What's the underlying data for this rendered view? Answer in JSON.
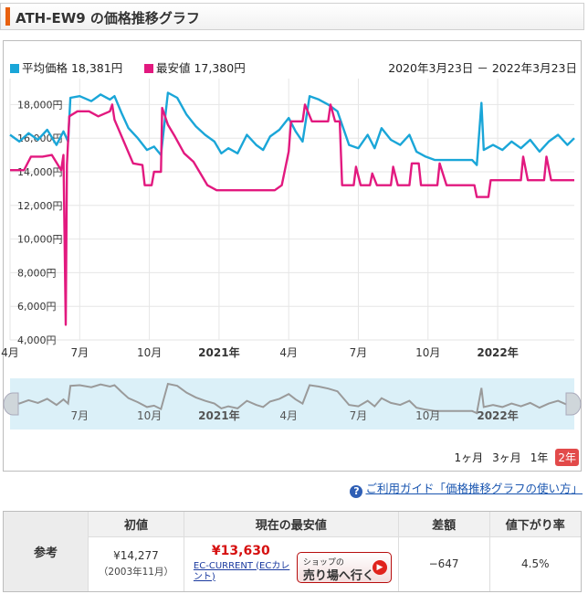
{
  "header": {
    "title": "ATH-EW9 の価格推移グラフ"
  },
  "legend": {
    "avg_label": "平均価格 18,381円",
    "min_label": "最安値 17,380円",
    "avg_color": "#1aa6d8",
    "min_color": "#e2197f",
    "date_range": "2020年3月23日 － 2022年3月23日"
  },
  "periods": [
    {
      "label": "1ヶ月",
      "active": false
    },
    {
      "label": "3ヶ月",
      "active": false
    },
    {
      "label": "1年",
      "active": false
    },
    {
      "label": "2年",
      "active": true
    }
  ],
  "guide": {
    "icon": "question-icon",
    "link": "ご利用ガイド「価格推移グラフの使い方」"
  },
  "reference": {
    "row_label": "参考",
    "headers": [
      "初値",
      "現在の最安値",
      "差額",
      "値下がり率"
    ],
    "initial_price": "¥14,277",
    "initial_date": "（2003年11月）",
    "current_lowest": "¥13,630",
    "shop_name": "EC-CURRENT (ECカレント)",
    "shop_button_small": "ショップの",
    "shop_button_large": "売り場へ行く",
    "difference": "−647",
    "drop_rate": "4.5%"
  },
  "chart_data": {
    "type": "line",
    "y_ticks": [
      "4,000円",
      "6,000円",
      "8,000円",
      "10,000円",
      "12,000円",
      "14,000円",
      "16,000円",
      "18,000円"
    ],
    "ylim": [
      4000,
      19000
    ],
    "x_ticks": [
      "4月",
      "7月",
      "10月",
      "2021年",
      "4月",
      "7月",
      "10月",
      "2022年"
    ],
    "x_tick_months": [
      1,
      4,
      7,
      10,
      13,
      16,
      19,
      22
    ],
    "overview_ticks": [
      "7月",
      "10月",
      "2021年",
      "4月",
      "7月",
      "10月",
      "2022年"
    ],
    "series": [
      {
        "name": "平均価格",
        "color": "#1aa6d8",
        "points": [
          [
            0,
            16200
          ],
          [
            0.4,
            15800
          ],
          [
            0.8,
            16300
          ],
          [
            1.2,
            15900
          ],
          [
            1.6,
            16500
          ],
          [
            2.0,
            15600
          ],
          [
            2.3,
            16400
          ],
          [
            2.5,
            15800
          ],
          [
            2.6,
            18400
          ],
          [
            3.0,
            18500
          ],
          [
            3.5,
            18200
          ],
          [
            3.9,
            18600
          ],
          [
            4.3,
            18300
          ],
          [
            4.5,
            18500
          ],
          [
            4.8,
            17500
          ],
          [
            5.1,
            16600
          ],
          [
            5.5,
            16000
          ],
          [
            5.9,
            15300
          ],
          [
            6.2,
            15500
          ],
          [
            6.5,
            15000
          ],
          [
            6.8,
            18700
          ],
          [
            7.2,
            18400
          ],
          [
            7.6,
            17400
          ],
          [
            8.0,
            16700
          ],
          [
            8.4,
            16200
          ],
          [
            8.8,
            15800
          ],
          [
            9.1,
            15100
          ],
          [
            9.4,
            15400
          ],
          [
            9.8,
            15100
          ],
          [
            10.2,
            16200
          ],
          [
            10.6,
            15600
          ],
          [
            10.9,
            15300
          ],
          [
            11.2,
            16100
          ],
          [
            11.6,
            16500
          ],
          [
            12.0,
            17200
          ],
          [
            12.3,
            16400
          ],
          [
            12.6,
            15800
          ],
          [
            12.9,
            18500
          ],
          [
            13.3,
            18300
          ],
          [
            13.7,
            18000
          ],
          [
            14.1,
            17600
          ],
          [
            14.4,
            16400
          ],
          [
            14.6,
            15600
          ],
          [
            15.0,
            15400
          ],
          [
            15.4,
            16200
          ],
          [
            15.7,
            15400
          ],
          [
            16.0,
            16600
          ],
          [
            16.4,
            15900
          ],
          [
            16.8,
            15600
          ],
          [
            17.2,
            16200
          ],
          [
            17.5,
            15200
          ],
          [
            17.9,
            14900
          ],
          [
            18.3,
            14700
          ],
          [
            18.8,
            14700
          ],
          [
            19.4,
            14700
          ],
          [
            19.9,
            14700
          ],
          [
            20.1,
            14400
          ],
          [
            20.3,
            18100
          ],
          [
            20.4,
            15300
          ],
          [
            20.8,
            15600
          ],
          [
            21.2,
            15300
          ],
          [
            21.6,
            15800
          ],
          [
            22.0,
            15400
          ],
          [
            22.4,
            15900
          ],
          [
            22.8,
            15200
          ],
          [
            23.2,
            15800
          ],
          [
            23.6,
            16200
          ],
          [
            24.0,
            15600
          ],
          [
            24.3,
            16000
          ]
        ]
      },
      {
        "name": "最安値",
        "color": "#e2197f",
        "points": [
          [
            0,
            14100
          ],
          [
            0.6,
            14100
          ],
          [
            0.9,
            14900
          ],
          [
            1.4,
            14900
          ],
          [
            1.8,
            15000
          ],
          [
            2.2,
            14100
          ],
          [
            2.3,
            15000
          ],
          [
            2.4,
            4900
          ],
          [
            2.45,
            14400
          ],
          [
            2.55,
            17300
          ],
          [
            2.9,
            17600
          ],
          [
            3.4,
            17600
          ],
          [
            3.8,
            17300
          ],
          [
            4.3,
            17600
          ],
          [
            4.4,
            18000
          ],
          [
            4.5,
            17100
          ],
          [
            4.9,
            15800
          ],
          [
            5.3,
            14500
          ],
          [
            5.7,
            14400
          ],
          [
            5.8,
            13200
          ],
          [
            6.1,
            13200
          ],
          [
            6.2,
            14000
          ],
          [
            6.5,
            14000
          ],
          [
            6.55,
            17800
          ],
          [
            6.8,
            16800
          ],
          [
            7.1,
            16100
          ],
          [
            7.5,
            15100
          ],
          [
            7.9,
            14600
          ],
          [
            8.2,
            13900
          ],
          [
            8.5,
            13200
          ],
          [
            8.9,
            12900
          ],
          [
            9.5,
            12900
          ],
          [
            10.2,
            12900
          ],
          [
            10.8,
            12900
          ],
          [
            11.4,
            12900
          ],
          [
            11.7,
            13200
          ],
          [
            12.0,
            15200
          ],
          [
            12.1,
            17000
          ],
          [
            12.6,
            17000
          ],
          [
            12.7,
            18000
          ],
          [
            13.0,
            17000
          ],
          [
            13.4,
            17000
          ],
          [
            13.7,
            17000
          ],
          [
            13.8,
            18000
          ],
          [
            14.0,
            17000
          ],
          [
            14.2,
            17000
          ],
          [
            14.3,
            13200
          ],
          [
            14.8,
            13200
          ],
          [
            14.9,
            14300
          ],
          [
            15.1,
            13200
          ],
          [
            15.5,
            13200
          ],
          [
            15.6,
            13900
          ],
          [
            15.8,
            13200
          ],
          [
            16.4,
            13200
          ],
          [
            16.5,
            14300
          ],
          [
            16.7,
            13200
          ],
          [
            17.2,
            13200
          ],
          [
            17.3,
            14500
          ],
          [
            17.6,
            14500
          ],
          [
            17.7,
            13200
          ],
          [
            18.4,
            13200
          ],
          [
            18.5,
            14500
          ],
          [
            18.8,
            13200
          ],
          [
            20.0,
            13200
          ],
          [
            20.1,
            12500
          ],
          [
            20.6,
            12500
          ],
          [
            20.7,
            13500
          ],
          [
            22.0,
            13500
          ],
          [
            22.1,
            14900
          ],
          [
            22.3,
            13500
          ],
          [
            23.0,
            13500
          ],
          [
            23.1,
            14900
          ],
          [
            23.3,
            13500
          ],
          [
            24.3,
            13500
          ]
        ]
      }
    ]
  }
}
